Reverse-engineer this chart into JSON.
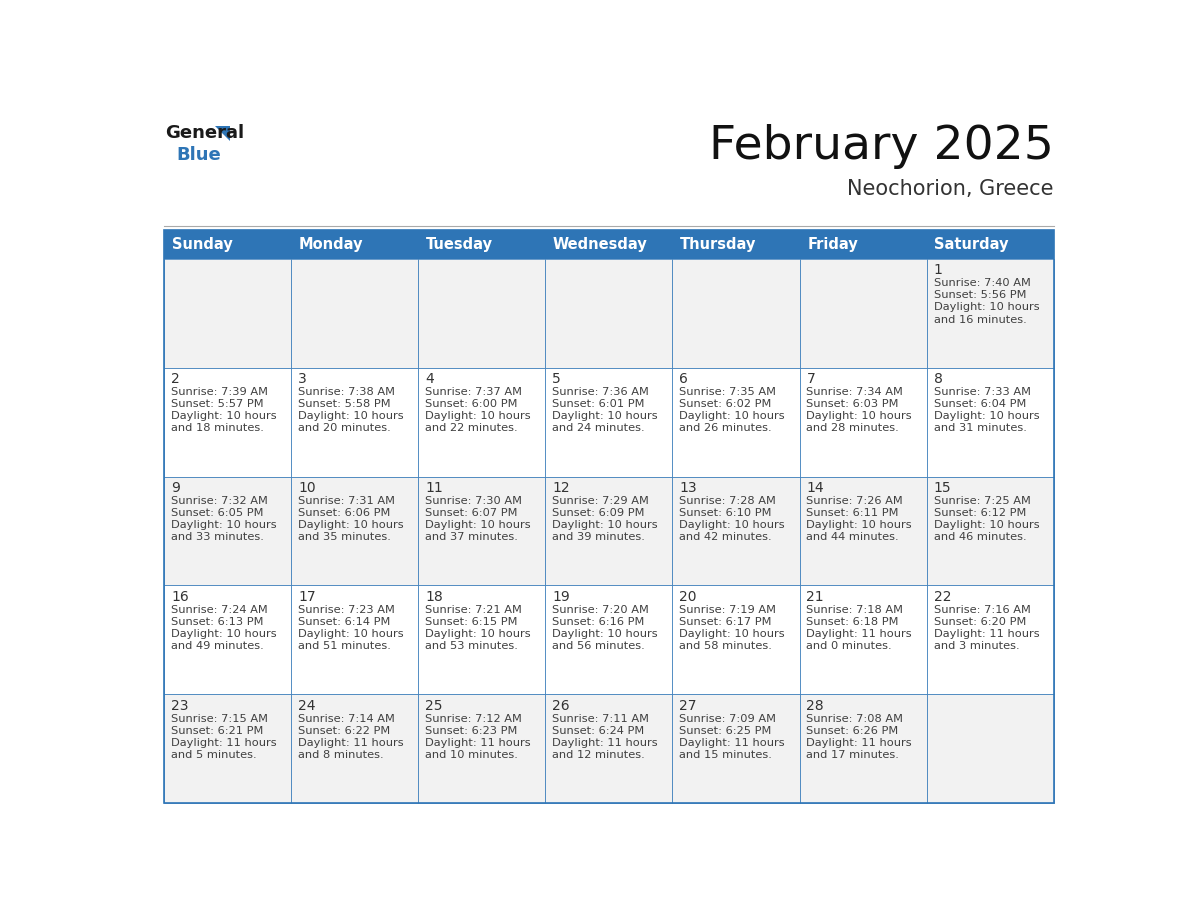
{
  "title": "February 2025",
  "subtitle": "Neochorion, Greece",
  "days_of_week": [
    "Sunday",
    "Monday",
    "Tuesday",
    "Wednesday",
    "Thursday",
    "Friday",
    "Saturday"
  ],
  "header_bg": "#2E75B6",
  "header_text": "#FFFFFF",
  "cell_bg_odd": "#F2F2F2",
  "cell_bg_even": "#FFFFFF",
  "border_color": "#2E75B6",
  "text_color": "#404040",
  "day_num_color": "#333333",
  "title_color": "#111111",
  "subtitle_color": "#333333",
  "logo_general_color": "#1a1a1a",
  "logo_blue_color": "#2E75B6",
  "weeks": [
    [
      {
        "day": null,
        "data": null
      },
      {
        "day": null,
        "data": null
      },
      {
        "day": null,
        "data": null
      },
      {
        "day": null,
        "data": null
      },
      {
        "day": null,
        "data": null
      },
      {
        "day": null,
        "data": null
      },
      {
        "day": 1,
        "data": {
          "sunrise": "7:40 AM",
          "sunset": "5:56 PM",
          "daylight": "10 hours",
          "daylight2": "and 16 minutes."
        }
      }
    ],
    [
      {
        "day": 2,
        "data": {
          "sunrise": "7:39 AM",
          "sunset": "5:57 PM",
          "daylight": "10 hours",
          "daylight2": "and 18 minutes."
        }
      },
      {
        "day": 3,
        "data": {
          "sunrise": "7:38 AM",
          "sunset": "5:58 PM",
          "daylight": "10 hours",
          "daylight2": "and 20 minutes."
        }
      },
      {
        "day": 4,
        "data": {
          "sunrise": "7:37 AM",
          "sunset": "6:00 PM",
          "daylight": "10 hours",
          "daylight2": "and 22 minutes."
        }
      },
      {
        "day": 5,
        "data": {
          "sunrise": "7:36 AM",
          "sunset": "6:01 PM",
          "daylight": "10 hours",
          "daylight2": "and 24 minutes."
        }
      },
      {
        "day": 6,
        "data": {
          "sunrise": "7:35 AM",
          "sunset": "6:02 PM",
          "daylight": "10 hours",
          "daylight2": "and 26 minutes."
        }
      },
      {
        "day": 7,
        "data": {
          "sunrise": "7:34 AM",
          "sunset": "6:03 PM",
          "daylight": "10 hours",
          "daylight2": "and 28 minutes."
        }
      },
      {
        "day": 8,
        "data": {
          "sunrise": "7:33 AM",
          "sunset": "6:04 PM",
          "daylight": "10 hours",
          "daylight2": "and 31 minutes."
        }
      }
    ],
    [
      {
        "day": 9,
        "data": {
          "sunrise": "7:32 AM",
          "sunset": "6:05 PM",
          "daylight": "10 hours",
          "daylight2": "and 33 minutes."
        }
      },
      {
        "day": 10,
        "data": {
          "sunrise": "7:31 AM",
          "sunset": "6:06 PM",
          "daylight": "10 hours",
          "daylight2": "and 35 minutes."
        }
      },
      {
        "day": 11,
        "data": {
          "sunrise": "7:30 AM",
          "sunset": "6:07 PM",
          "daylight": "10 hours",
          "daylight2": "and 37 minutes."
        }
      },
      {
        "day": 12,
        "data": {
          "sunrise": "7:29 AM",
          "sunset": "6:09 PM",
          "daylight": "10 hours",
          "daylight2": "and 39 minutes."
        }
      },
      {
        "day": 13,
        "data": {
          "sunrise": "7:28 AM",
          "sunset": "6:10 PM",
          "daylight": "10 hours",
          "daylight2": "and 42 minutes."
        }
      },
      {
        "day": 14,
        "data": {
          "sunrise": "7:26 AM",
          "sunset": "6:11 PM",
          "daylight": "10 hours",
          "daylight2": "and 44 minutes."
        }
      },
      {
        "day": 15,
        "data": {
          "sunrise": "7:25 AM",
          "sunset": "6:12 PM",
          "daylight": "10 hours",
          "daylight2": "and 46 minutes."
        }
      }
    ],
    [
      {
        "day": 16,
        "data": {
          "sunrise": "7:24 AM",
          "sunset": "6:13 PM",
          "daylight": "10 hours",
          "daylight2": "and 49 minutes."
        }
      },
      {
        "day": 17,
        "data": {
          "sunrise": "7:23 AM",
          "sunset": "6:14 PM",
          "daylight": "10 hours",
          "daylight2": "and 51 minutes."
        }
      },
      {
        "day": 18,
        "data": {
          "sunrise": "7:21 AM",
          "sunset": "6:15 PM",
          "daylight": "10 hours",
          "daylight2": "and 53 minutes."
        }
      },
      {
        "day": 19,
        "data": {
          "sunrise": "7:20 AM",
          "sunset": "6:16 PM",
          "daylight": "10 hours",
          "daylight2": "and 56 minutes."
        }
      },
      {
        "day": 20,
        "data": {
          "sunrise": "7:19 AM",
          "sunset": "6:17 PM",
          "daylight": "10 hours",
          "daylight2": "and 58 minutes."
        }
      },
      {
        "day": 21,
        "data": {
          "sunrise": "7:18 AM",
          "sunset": "6:18 PM",
          "daylight": "11 hours",
          "daylight2": "and 0 minutes."
        }
      },
      {
        "day": 22,
        "data": {
          "sunrise": "7:16 AM",
          "sunset": "6:20 PM",
          "daylight": "11 hours",
          "daylight2": "and 3 minutes."
        }
      }
    ],
    [
      {
        "day": 23,
        "data": {
          "sunrise": "7:15 AM",
          "sunset": "6:21 PM",
          "daylight": "11 hours",
          "daylight2": "and 5 minutes."
        }
      },
      {
        "day": 24,
        "data": {
          "sunrise": "7:14 AM",
          "sunset": "6:22 PM",
          "daylight": "11 hours",
          "daylight2": "and 8 minutes."
        }
      },
      {
        "day": 25,
        "data": {
          "sunrise": "7:12 AM",
          "sunset": "6:23 PM",
          "daylight": "11 hours",
          "daylight2": "and 10 minutes."
        }
      },
      {
        "day": 26,
        "data": {
          "sunrise": "7:11 AM",
          "sunset": "6:24 PM",
          "daylight": "11 hours",
          "daylight2": "and 12 minutes."
        }
      },
      {
        "day": 27,
        "data": {
          "sunrise": "7:09 AM",
          "sunset": "6:25 PM",
          "daylight": "11 hours",
          "daylight2": "and 15 minutes."
        }
      },
      {
        "day": 28,
        "data": {
          "sunrise": "7:08 AM",
          "sunset": "6:26 PM",
          "daylight": "11 hours",
          "daylight2": "and 17 minutes."
        }
      },
      {
        "day": null,
        "data": null
      }
    ]
  ]
}
